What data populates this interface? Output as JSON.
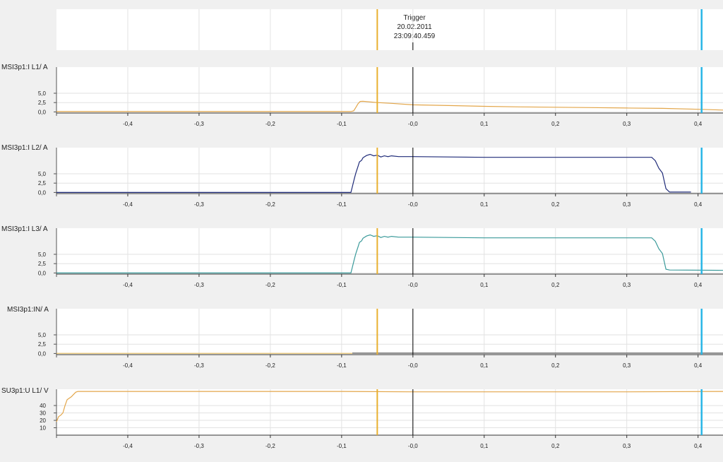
{
  "trigger": {
    "label": "Trigger",
    "date": "20.02.2011",
    "time": "23:09:40.459"
  },
  "colors": {
    "orange_marker": "#e8b030",
    "cyan_marker": "#29b6e6",
    "trigger_line": "#000000",
    "grid": "#e2e2e2",
    "panel_bg": "#ffffff"
  },
  "x_axis": {
    "min": -0.5,
    "max": 0.435,
    "ticks": [
      -0.4,
      -0.3,
      -0.2,
      -0.1,
      0.0,
      0.1,
      0.2,
      0.3,
      0.4
    ],
    "tick_labels": [
      "-0,4",
      "-0,3",
      "-0,2",
      "-0,1",
      "-0,0",
      "0,1",
      "0,2",
      "0,3",
      "0,4"
    ]
  },
  "markers": {
    "orange_x": -0.05,
    "trigger_x": 0.0,
    "cyan_x": 0.405
  },
  "chart_data": [
    {
      "type": "line",
      "title": "MSI3p1:I L1/ A",
      "ylim": [
        -0.3,
        12
      ],
      "yticks": [
        0,
        2.5,
        5
      ],
      "ytick_labels": [
        "0,0",
        "2,5",
        "5,0"
      ],
      "grid": true,
      "series": [
        {
          "color": "#e3a64a",
          "x": [
            -0.5,
            -0.087,
            -0.083,
            -0.08,
            -0.077,
            -0.074,
            -0.07,
            -0.05,
            -0.03,
            0.0,
            0.05,
            0.1,
            0.15,
            0.2,
            0.25,
            0.3,
            0.35,
            0.4,
            0.435
          ],
          "y": [
            0.1,
            0.1,
            0.3,
            1.2,
            2.2,
            2.8,
            2.85,
            2.5,
            2.3,
            1.9,
            1.7,
            1.5,
            1.35,
            1.25,
            1.15,
            1.05,
            0.95,
            0.7,
            0.5
          ]
        }
      ]
    },
    {
      "type": "line",
      "title": "MSI3p1:I L2/ A",
      "ylim": [
        -0.3,
        12
      ],
      "yticks": [
        0,
        2.5,
        5
      ],
      "ytick_labels": [
        "0,0",
        "2,5",
        "5,0"
      ],
      "grid": true,
      "series": [
        {
          "color": "#1e2a78",
          "x": [
            -0.5,
            -0.087,
            -0.085,
            -0.082,
            -0.08,
            -0.077,
            -0.075,
            -0.072,
            -0.07,
            -0.065,
            -0.06,
            -0.055,
            -0.05,
            -0.045,
            -0.04,
            -0.035,
            -0.03,
            -0.02,
            0.0,
            0.05,
            0.1,
            0.2,
            0.3,
            0.335,
            0.34,
            0.345,
            0.35,
            0.355,
            0.36,
            0.39
          ],
          "y": [
            0,
            0,
            1.5,
            3.8,
            5.2,
            7,
            8.2,
            8.6,
            9.3,
            9.9,
            10.2,
            9.8,
            10,
            9.5,
            9.8,
            9.6,
            9.8,
            9.6,
            9.6,
            9.5,
            9.4,
            9.4,
            9.4,
            9.4,
            8.5,
            6.5,
            5.2,
            1,
            0.1,
            0.1
          ]
        }
      ]
    },
    {
      "type": "line",
      "title": "MSI3p1:I L3/ A",
      "ylim": [
        -0.3,
        12
      ],
      "yticks": [
        0,
        2.5,
        5
      ],
      "ytick_labels": [
        "0,0",
        "2,5",
        "5,0"
      ],
      "grid": true,
      "series": [
        {
          "color": "#3a9a9a",
          "x": [
            -0.5,
            -0.087,
            -0.085,
            -0.082,
            -0.08,
            -0.077,
            -0.075,
            -0.072,
            -0.07,
            -0.065,
            -0.06,
            -0.055,
            -0.05,
            -0.045,
            -0.04,
            -0.035,
            -0.03,
            -0.02,
            0.0,
            0.05,
            0.1,
            0.2,
            0.3,
            0.335,
            0.34,
            0.345,
            0.35,
            0.355,
            0.36,
            0.435
          ],
          "y": [
            0,
            0,
            1.5,
            3.8,
            5.2,
            7,
            8.2,
            8.6,
            9.3,
            9.9,
            10.2,
            9.8,
            10,
            9.5,
            9.8,
            9.6,
            9.8,
            9.6,
            9.6,
            9.5,
            9.4,
            9.4,
            9.4,
            9.4,
            8.5,
            6.5,
            5.2,
            1,
            0.8,
            0.7
          ]
        }
      ]
    },
    {
      "type": "line",
      "title": "MSI3p1:IN/ A",
      "ylim": [
        -0.3,
        12
      ],
      "yticks": [
        0,
        2.5,
        5
      ],
      "ytick_labels": [
        "0,0",
        "2,5",
        "5,0"
      ],
      "grid": true,
      "series": [
        {
          "color": "#e8c060",
          "x": [
            -0.5,
            -0.085
          ],
          "y": [
            0.05,
            0.05
          ]
        },
        {
          "color": "#555555",
          "x": [
            -0.085,
            0.435
          ],
          "y": [
            0.1,
            0.1
          ]
        }
      ]
    },
    {
      "type": "line",
      "title": "SU3p1:U L1/ V",
      "ylim": [
        0,
        62
      ],
      "yticks": [
        10,
        20,
        30,
        40
      ],
      "ytick_labels": [
        "10",
        "20",
        "30",
        "40"
      ],
      "grid": true,
      "series": [
        {
          "color": "#e3a64a",
          "x": [
            -0.5,
            -0.497,
            -0.494,
            -0.491,
            -0.488,
            -0.485,
            -0.482,
            -0.479,
            -0.476,
            -0.473,
            -0.47,
            -0.1,
            0.0,
            0.3,
            0.435
          ],
          "y": [
            18,
            25,
            27,
            30,
            40,
            48,
            50,
            52,
            55,
            58,
            59,
            59,
            58.5,
            58.5,
            59
          ]
        }
      ]
    }
  ]
}
